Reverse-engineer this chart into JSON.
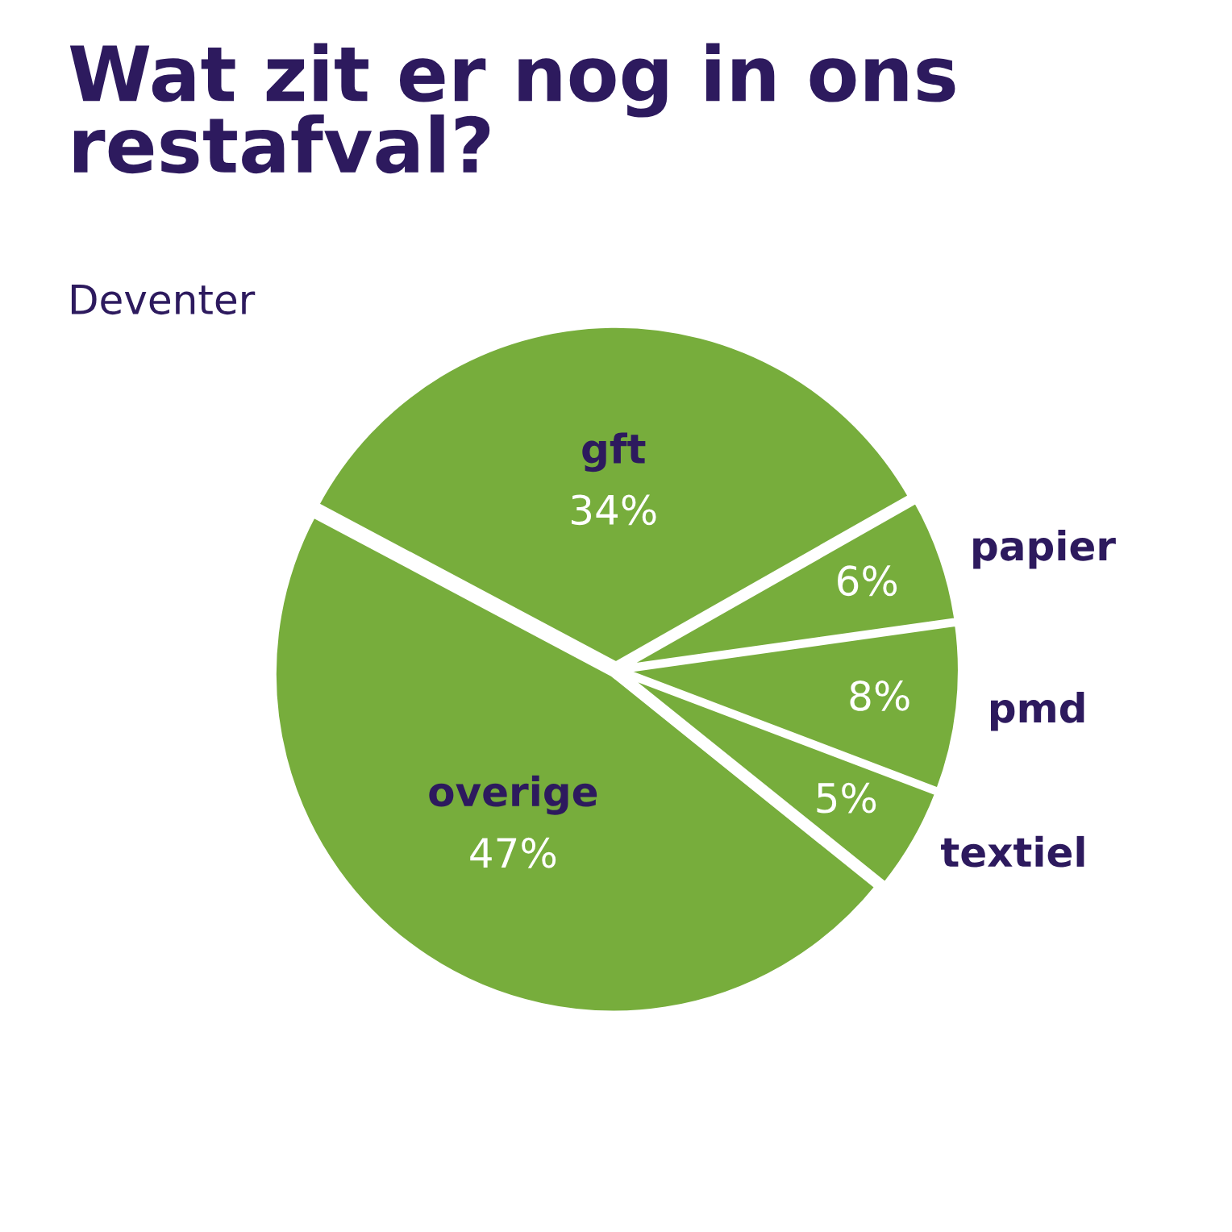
{
  "chart_data": {
    "type": "pie",
    "title": "Wat zit er nog in ons restafval?",
    "subtitle": "Deventer",
    "categories": [
      "gft",
      "papier",
      "pmd",
      "textiel",
      "overige"
    ],
    "values": [
      34,
      6,
      8,
      5,
      47
    ],
    "colors": [
      "#77ad3c",
      "#77ad3c",
      "#77ad3c",
      "#77ad3c",
      "#77ad3c"
    ],
    "value_labels": [
      "34%",
      "6%",
      "8%",
      "5%",
      "47%"
    ]
  }
}
